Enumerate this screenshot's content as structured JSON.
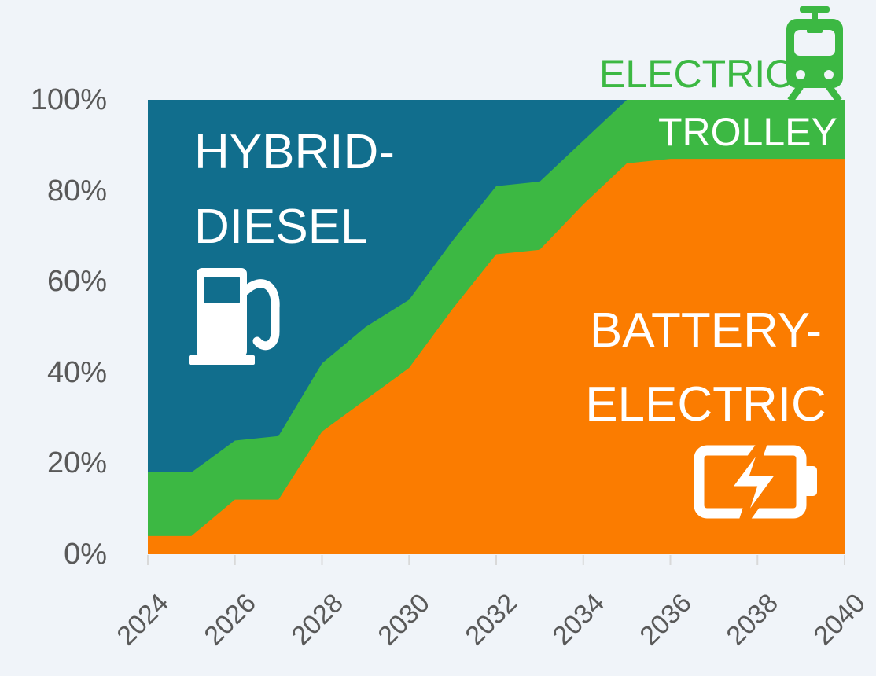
{
  "chart_data": {
    "type": "area",
    "stacked": true,
    "unit": "%",
    "x": [
      2024,
      2025,
      2026,
      2027,
      2028,
      2029,
      2030,
      2031,
      2032,
      2033,
      2034,
      2035,
      2036,
      2037,
      2038,
      2039,
      2040
    ],
    "x_tick_labels": [
      "2024",
      "2026",
      "2028",
      "2030",
      "2032",
      "2034",
      "2036",
      "2038",
      "2040"
    ],
    "y_ticks": [
      0,
      20,
      40,
      60,
      80,
      100
    ],
    "y_tick_labels": [
      "0%",
      "20%",
      "40%",
      "60%",
      "80%",
      "100%"
    ],
    "ylim": [
      0,
      100
    ],
    "grid": false,
    "legend_position": "labels-inside-areas",
    "series": [
      {
        "name": "BATTERY-ELECTRIC",
        "color": "#fb7c00",
        "values": [
          4,
          4,
          12,
          12,
          27,
          34,
          41,
          54,
          66,
          67,
          77,
          86,
          87,
          87,
          87,
          87,
          87
        ]
      },
      {
        "name": "ELECTRIC TROLLEY",
        "color": "#3cb843",
        "values": [
          14,
          14,
          13,
          14,
          15,
          16,
          15,
          15,
          15,
          15,
          14,
          14,
          13,
          13,
          13,
          13,
          13
        ]
      },
      {
        "name": "HYBRID-DIESEL",
        "color": "#116e8d",
        "values": [
          82,
          82,
          75,
          74,
          58,
          50,
          44,
          31,
          19,
          18,
          9,
          0,
          0,
          0,
          0,
          0,
          0
        ]
      }
    ]
  },
  "labels": {
    "hybrid_line1": "HYBRID-",
    "hybrid_line2": "DIESEL",
    "battery_line1": "BATTERY-",
    "battery_line2": "ELECTRIC",
    "trolley_outside": "ELECTRIC",
    "trolley_inside": "TROLLEY"
  },
  "icons": {
    "hybrid": "fuel-pump-icon",
    "battery": "battery-charging-icon",
    "trolley": "tram-icon"
  },
  "colors": {
    "background": "#f0f4f9",
    "axis_text": "#595959",
    "tick": "#d9d9d9",
    "battery_orange": "#fb7c00",
    "trolley_green": "#3cb843",
    "hybrid_blue": "#116e8d",
    "label_white": "#ffffff"
  }
}
